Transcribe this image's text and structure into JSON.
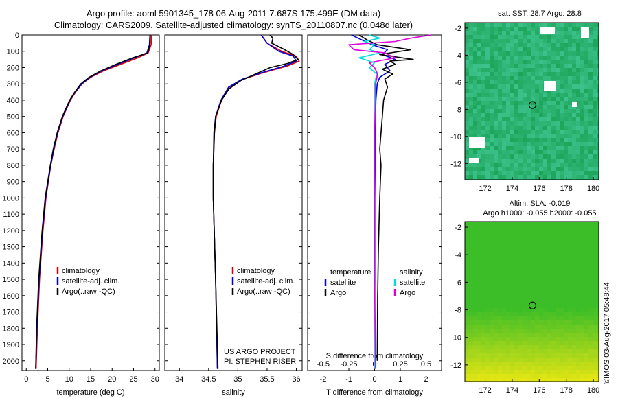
{
  "title_line1": "Argo profile: aoml 5901345_178 06-Aug-2011 7.687S 175.499E (DM data)",
  "title_line2": "Climatology: CARS2009. Satellite-adjusted climatology: synTS_20110807.nc (0.048d later)",
  "sst_title": "sat. SST: 28.7 Argo: 28.8",
  "sla_title1": "Altim. SLA: -0.019",
  "sla_title2": "Argo h1000: -0.055 h2000: -0.055",
  "credit": "©IMOS 03-Aug-2017 05:48:44",
  "colors": {
    "clim": "#dd0000",
    "sat": "#0000dd",
    "argo": "#000000",
    "sal_sat": "#00dddd",
    "sal_argo": "#dd00dd"
  },
  "chart_data": [
    {
      "type": "line",
      "name": "temperature",
      "xlabel": "temperature (deg C)",
      "ylabel": "",
      "xlim": [
        -1,
        31
      ],
      "ylim": [
        2060,
        0
      ],
      "xticks": [
        "0",
        "5",
        "10",
        "15",
        "20",
        "25",
        "30"
      ],
      "yticks": [
        "0",
        "100",
        "200",
        "300",
        "400",
        "500",
        "600",
        "700",
        "800",
        "900",
        "1000",
        "1100",
        "1200",
        "1300",
        "1400",
        "1500",
        "1600",
        "1700",
        "1800",
        "1900",
        "2000"
      ],
      "legend": [
        "climatology",
        "satellite-adj. clim.",
        "Argo(..raw -QC)"
      ],
      "series": [
        {
          "name": "climatology",
          "color_key": "clim",
          "depth": [
            0,
            60,
            110,
            140,
            180,
            220,
            260,
            300,
            350,
            400,
            500,
            600,
            700,
            800,
            1000,
            1200,
            1500,
            1800,
            2050
          ],
          "values": [
            29.2,
            29.1,
            28.4,
            26,
            22,
            18,
            15,
            13,
            11.5,
            10.3,
            8.6,
            7.4,
            6.5,
            5.7,
            4.6,
            3.9,
            3.1,
            2.6,
            2.3
          ]
        },
        {
          "name": "satellite-adj. clim.",
          "color_key": "sat",
          "depth": [
            0,
            60,
            110,
            140,
            180,
            220,
            260,
            300,
            350,
            400,
            500,
            600,
            700,
            800,
            1000,
            1200,
            1500,
            1800,
            2050
          ],
          "values": [
            28.8,
            28.7,
            28.1,
            25.2,
            21.3,
            17.6,
            14.8,
            12.9,
            11.4,
            10.2,
            8.5,
            7.3,
            6.4,
            5.7,
            4.5,
            3.8,
            3.0,
            2.5,
            2.2
          ]
        },
        {
          "name": "Argo(..raw -QC)",
          "color_key": "argo",
          "depth": [
            0,
            60,
            110,
            140,
            180,
            220,
            260,
            300,
            350,
            400,
            500,
            600,
            700,
            800,
            1000,
            1200,
            1500,
            1800,
            2050
          ],
          "values": [
            28.9,
            28.8,
            28.3,
            24.8,
            20.9,
            17.4,
            14.6,
            12.7,
            11.3,
            10.1,
            8.4,
            7.2,
            6.3,
            5.6,
            4.4,
            3.7,
            2.9,
            2.4,
            2.2
          ]
        }
      ]
    },
    {
      "type": "line",
      "name": "salinity",
      "xlabel": "salinity",
      "xlim": [
        33.75,
        36.1
      ],
      "ylim": [
        2060,
        0
      ],
      "xticks": [
        "34",
        "34.5",
        "35",
        "35.5",
        "36"
      ],
      "legend": [
        "climatology",
        "satellite-adj. clim.",
        "Argo(..raw -QC)"
      ],
      "series": [
        {
          "name": "climatology",
          "color_key": "clim",
          "depth": [
            0,
            50,
            100,
            130,
            160,
            190,
            230,
            270,
            320,
            400,
            500,
            600,
            800,
            1000,
            1500,
            2050
          ],
          "values": [
            35.4,
            35.5,
            35.75,
            36.0,
            36.05,
            35.85,
            35.45,
            35.1,
            34.85,
            34.72,
            34.63,
            34.6,
            34.58,
            34.58,
            34.62,
            34.65
          ]
        },
        {
          "name": "satellite-adj. clim.",
          "color_key": "sat",
          "depth": [
            0,
            50,
            100,
            130,
            160,
            190,
            230,
            270,
            320,
            400,
            500,
            600,
            800,
            1000,
            1500,
            2050
          ],
          "values": [
            35.4,
            35.5,
            35.7,
            35.95,
            36.0,
            35.8,
            35.42,
            35.08,
            34.84,
            34.71,
            34.62,
            34.59,
            34.58,
            34.58,
            34.62,
            34.65
          ]
        },
        {
          "name": "Argo(..raw -QC)",
          "color_key": "argo",
          "depth": [
            0,
            20,
            50,
            90,
            120,
            150,
            175,
            200,
            240,
            280,
            330,
            400,
            500,
            600,
            800,
            1000,
            1500,
            2050
          ],
          "values": [
            35.55,
            35.6,
            35.58,
            35.8,
            35.95,
            36.03,
            35.85,
            35.55,
            35.3,
            35.05,
            34.85,
            34.72,
            34.62,
            34.6,
            34.58,
            34.58,
            34.62,
            34.66
          ]
        }
      ],
      "annotation": [
        "US ARGO PROJECT",
        "PI: STEPHEN RISER"
      ]
    },
    {
      "type": "line",
      "name": "difference",
      "xlabel": "T difference from climatology",
      "x2label": "S difference from climatology",
      "xlim": [
        -2.6,
        2.6
      ],
      "ylim": [
        2060,
        0
      ],
      "xticks": [
        "-2",
        "-1",
        "0",
        "1",
        "2"
      ],
      "x2ticks": [
        "-0.5",
        "-0.25",
        "0",
        "0.25",
        "0.5"
      ],
      "legend_left_title": "temperature",
      "legend_right_title": "salinity",
      "legend_left": [
        "satellite",
        "Argo"
      ],
      "legend_right": [
        "satellite",
        "Argo"
      ],
      "series": [
        {
          "name": "T satellite",
          "color_key": "sat",
          "depth": [
            0,
            30,
            60,
            90,
            120,
            150,
            180,
            220,
            260,
            300,
            400,
            600,
            800,
            1000,
            1500,
            2050
          ],
          "values": [
            -0.9,
            -0.5,
            -0.1,
            0.5,
            0.3,
            0.8,
            0.4,
            0.6,
            0.2,
            0.1,
            0.05,
            0.02,
            0.02,
            0.01,
            0.01,
            0.0
          ]
        },
        {
          "name": "T Argo",
          "color_key": "argo",
          "depth": [
            0,
            30,
            60,
            90,
            120,
            150,
            160,
            180,
            210,
            240,
            270,
            320,
            400,
            500,
            700,
            800,
            1000,
            1300,
            1600,
            2000
          ],
          "values": [
            -0.6,
            -0.3,
            0.1,
            1.4,
            0.2,
            1.5,
            0.6,
            0.8,
            0.3,
            0.7,
            0.4,
            0.5,
            0.35,
            0.3,
            0.2,
            0.25,
            0.2,
            0.15,
            0.12,
            0.1
          ]
        },
        {
          "name": "S satellite",
          "color_key": "sal_sat",
          "depth": [
            0,
            20,
            40,
            60,
            90,
            110,
            140,
            170,
            200,
            240,
            300,
            400,
            600,
            1000,
            1500,
            2050
          ],
          "values": [
            -0.05,
            0.05,
            -0.1,
            0.0,
            -0.05,
            0.05,
            -0.15,
            0.0,
            -0.05,
            0.02,
            0.0,
            0.0,
            0.0,
            0.0,
            0.0,
            0.0
          ]
        },
        {
          "name": "S Argo",
          "color_key": "sal_argo",
          "depth": [
            0,
            20,
            40,
            60,
            90,
            110,
            140,
            170,
            200,
            240,
            300,
            400,
            600,
            1000,
            1500,
            2050
          ],
          "values": [
            0.55,
            0.35,
            0.2,
            -0.25,
            -0.2,
            0.1,
            0.2,
            -0.05,
            0.0,
            0.03,
            0.01,
            0.01,
            0.0,
            0.0,
            0.0,
            0.01
          ]
        }
      ]
    },
    {
      "type": "heatmap",
      "name": "sst_map",
      "title": "sat. SST: 28.7 Argo: 28.8",
      "xlim": [
        170.5,
        180.4
      ],
      "ylim": [
        -13.2,
        -1.6
      ],
      "xticks": [
        "172",
        "174",
        "176",
        "178",
        "180"
      ],
      "yticks": [
        "-2",
        "-4",
        "-6",
        "-8",
        "-10",
        "-12"
      ],
      "marker": [
        175.499,
        -7.687
      ]
    },
    {
      "type": "heatmap",
      "name": "sla_map",
      "title": "Altim. SLA: -0.019 / Argo h1000: -0.055 h2000: -0.055",
      "xlim": [
        170.5,
        180.4
      ],
      "ylim": [
        -13.2,
        -1.6
      ],
      "xticks": [
        "172",
        "174",
        "176",
        "178",
        "180"
      ],
      "yticks": [
        "-2",
        "-4",
        "-6",
        "-8",
        "-10",
        "-12"
      ],
      "marker": [
        175.499,
        -7.687
      ]
    }
  ]
}
